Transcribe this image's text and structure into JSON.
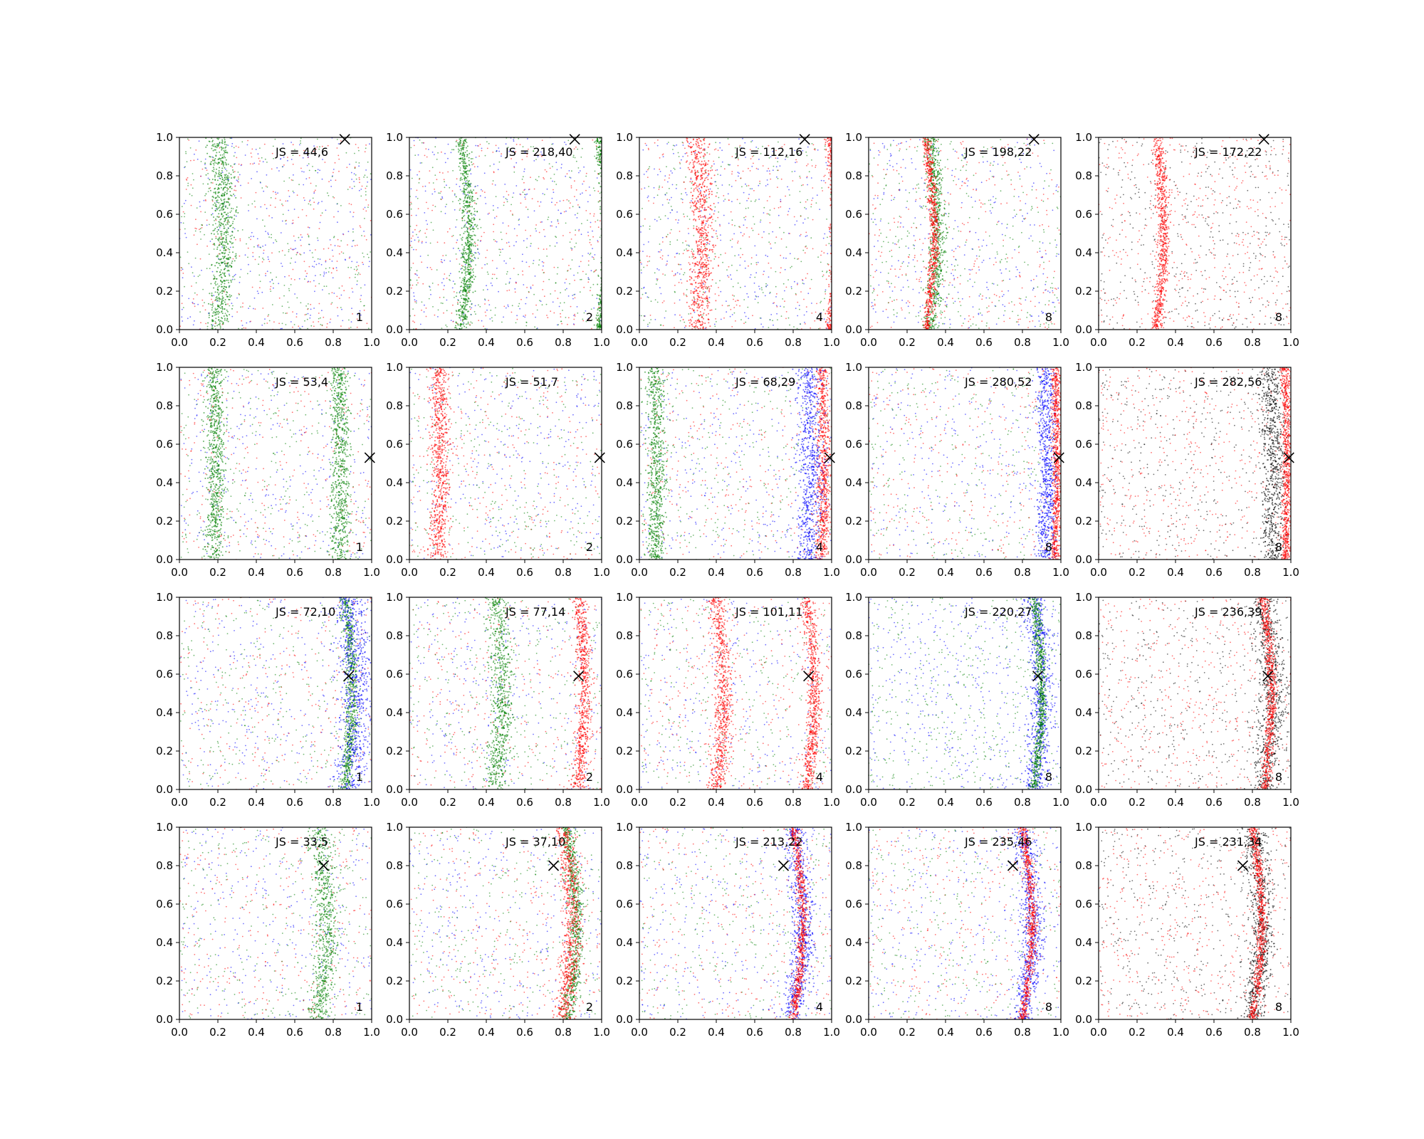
{
  "figure": {
    "rows": 4,
    "cols": 5,
    "note": ""
  },
  "chart_data": {
    "type": "scatter",
    "axes": {
      "xlim": [
        0.0,
        1.0
      ],
      "ylim": [
        0.0,
        1.0
      ],
      "xticks": [
        0.0,
        0.2,
        0.4,
        0.6,
        0.8,
        1.0
      ],
      "yticks": [
        0.0,
        0.2,
        0.4,
        0.6,
        0.8,
        1.0
      ],
      "tick_labels": [
        "0.0",
        "0.2",
        "0.4",
        "0.6",
        "0.8",
        "1.0"
      ],
      "grid": false
    },
    "colors": {
      "blue": "#0000ff",
      "green": "#008000",
      "red": "#ff0000",
      "black": "#000000"
    },
    "panels": [
      {
        "js": "JS = 44,6",
        "label": "1",
        "marker": [
          0.86,
          0.99
        ],
        "colors": [
          "red",
          "green",
          "blue"
        ],
        "bands": [
          {
            "c": 0.2,
            "w": 0.05,
            "color": "green"
          }
        ],
        "curve_amp": 0.03
      },
      {
        "js": "JS = 218,40",
        "label": "2",
        "marker": [
          0.86,
          0.99
        ],
        "colors": [
          "red",
          "green",
          "blue"
        ],
        "bands": [
          {
            "c": 0.27,
            "w": 0.03,
            "color": "green"
          },
          {
            "c": 0.985,
            "w": 0.02,
            "color": "green"
          }
        ],
        "curve_amp": 0.04
      },
      {
        "js": "JS = 112,16",
        "label": "4",
        "marker": [
          0.86,
          0.99
        ],
        "colors": [
          "red",
          "green",
          "blue"
        ],
        "bands": [
          {
            "c": 0.99,
            "w": 0.02,
            "color": "red"
          },
          {
            "c": 0.3,
            "w": 0.05,
            "color": "red"
          }
        ],
        "curve_amp": 0.03
      },
      {
        "js": "JS = 198,22",
        "label": "8",
        "marker": [
          0.86,
          0.99
        ],
        "colors": [
          "red",
          "green",
          "blue"
        ],
        "bands": [
          {
            "c": 0.32,
            "w": 0.035,
            "color": "green"
          },
          {
            "c": 0.3,
            "w": 0.02,
            "color": "red"
          }
        ],
        "curve_amp": 0.04
      },
      {
        "js": "JS = 172,22",
        "label": "8",
        "marker": [
          0.86,
          0.99
        ],
        "colors": [
          "red",
          "black"
        ],
        "bands": [
          {
            "c": 0.3,
            "w": 0.025,
            "color": "red"
          }
        ],
        "curve_amp": 0.04
      },
      {
        "js": "JS = 53,4",
        "label": "1",
        "marker": [
          0.99,
          0.53
        ],
        "colors": [
          "red",
          "green",
          "blue"
        ],
        "bands": [
          {
            "c": 0.18,
            "w": 0.04,
            "color": "green"
          },
          {
            "c": 0.83,
            "w": 0.04,
            "color": "green"
          }
        ],
        "curve_amp": 0.01
      },
      {
        "js": "JS = 51,7",
        "label": "2",
        "marker": [
          0.99,
          0.53
        ],
        "colors": [
          "red",
          "green",
          "blue"
        ],
        "bands": [
          {
            "c": 0.15,
            "w": 0.04,
            "color": "red"
          }
        ],
        "curve_amp": 0.01
      },
      {
        "js": "JS = 68,29",
        "label": "4",
        "marker": [
          0.99,
          0.53
        ],
        "colors": [
          "red",
          "green",
          "blue"
        ],
        "bands": [
          {
            "c": 0.95,
            "w": 0.03,
            "color": "red"
          },
          {
            "c": 0.08,
            "w": 0.04,
            "color": "green"
          },
          {
            "c": 0.88,
            "w": 0.06,
            "color": "blue"
          }
        ],
        "curve_amp": 0.01
      },
      {
        "js": "JS = 280,52",
        "label": "8",
        "marker": [
          0.99,
          0.53
        ],
        "colors": [
          "green",
          "blue",
          "red"
        ],
        "bands": [
          {
            "c": 0.92,
            "w": 0.04,
            "color": "blue"
          },
          {
            "c": 0.97,
            "w": 0.02,
            "color": "red"
          }
        ],
        "curve_amp": 0.01
      },
      {
        "js": "JS = 282,56",
        "label": "8",
        "marker": [
          0.99,
          0.53
        ],
        "colors": [
          "black",
          "red"
        ],
        "bands": [
          {
            "c": 0.9,
            "w": 0.05,
            "color": "black"
          },
          {
            "c": 0.97,
            "w": 0.02,
            "color": "red"
          }
        ],
        "curve_amp": 0.01
      },
      {
        "js": "JS = 72,10",
        "label": "1",
        "marker": [
          0.88,
          0.59
        ],
        "colors": [
          "red",
          "green",
          "blue"
        ],
        "bands": [
          {
            "c": 0.86,
            "w": 0.025,
            "color": "green"
          },
          {
            "c": 0.88,
            "w": 0.07,
            "color": "blue"
          }
        ],
        "curve_amp": 0.04
      },
      {
        "js": "JS = 77,14",
        "label": "2",
        "marker": [
          0.88,
          0.59
        ],
        "colors": [
          "red",
          "green",
          "blue"
        ],
        "bands": [
          {
            "c": 0.88,
            "w": 0.03,
            "color": "red"
          },
          {
            "c": 0.45,
            "w": 0.05,
            "color": "green"
          }
        ],
        "curve_amp": 0.03
      },
      {
        "js": "JS = 101,11",
        "label": "4",
        "marker": [
          0.88,
          0.59
        ],
        "colors": [
          "red",
          "green",
          "blue"
        ],
        "bands": [
          {
            "c": 0.4,
            "w": 0.04,
            "color": "red"
          },
          {
            "c": 0.87,
            "w": 0.03,
            "color": "red"
          }
        ],
        "curve_amp": 0.04
      },
      {
        "js": "JS = 220,27",
        "label": "8",
        "marker": [
          0.88,
          0.59
        ],
        "colors": [
          "blue",
          "green"
        ],
        "bands": [
          {
            "c": 0.86,
            "w": 0.05,
            "color": "blue"
          },
          {
            "c": 0.86,
            "w": 0.02,
            "color": "green"
          }
        ],
        "curve_amp": 0.04
      },
      {
        "js": "JS = 236,39",
        "label": "8",
        "marker": [
          0.88,
          0.59
        ],
        "colors": [
          "black",
          "red"
        ],
        "bands": [
          {
            "c": 0.86,
            "w": 0.06,
            "color": "black"
          },
          {
            "c": 0.86,
            "w": 0.02,
            "color": "red"
          }
        ],
        "curve_amp": 0.04
      },
      {
        "js": "JS = 33,5",
        "label": "1",
        "marker": [
          0.75,
          0.8
        ],
        "colors": [
          "red",
          "green",
          "blue"
        ],
        "bands": [
          {
            "c": 0.72,
            "w": 0.05,
            "color": "green"
          }
        ],
        "curve_amp": 0.05
      },
      {
        "js": "JS = 37,10",
        "label": "2",
        "marker": [
          0.75,
          0.8
        ],
        "colors": [
          "red",
          "green",
          "blue"
        ],
        "bands": [
          {
            "c": 0.82,
            "w": 0.03,
            "color": "green"
          },
          {
            "c": 0.8,
            "w": 0.04,
            "color": "red"
          }
        ],
        "curve_amp": 0.05
      },
      {
        "js": "JS = 213,22",
        "label": "4",
        "marker": [
          0.75,
          0.8
        ],
        "colors": [
          "green",
          "blue",
          "red"
        ],
        "bands": [
          {
            "c": 0.8,
            "w": 0.05,
            "color": "blue"
          },
          {
            "c": 0.8,
            "w": 0.02,
            "color": "red"
          }
        ],
        "curve_amp": 0.05
      },
      {
        "js": "JS = 235,46",
        "label": "8",
        "marker": [
          0.75,
          0.8
        ],
        "colors": [
          "green",
          "blue",
          "red"
        ],
        "bands": [
          {
            "c": 0.8,
            "w": 0.05,
            "color": "blue"
          },
          {
            "c": 0.8,
            "w": 0.02,
            "color": "red"
          }
        ],
        "curve_amp": 0.05
      },
      {
        "js": "JS = 231,34",
        "label": "8",
        "marker": [
          0.75,
          0.8
        ],
        "colors": [
          "black",
          "red"
        ],
        "bands": [
          {
            "c": 0.8,
            "w": 0.05,
            "color": "black"
          },
          {
            "c": 0.8,
            "w": 0.02,
            "color": "red"
          }
        ],
        "curve_amp": 0.05
      }
    ]
  }
}
